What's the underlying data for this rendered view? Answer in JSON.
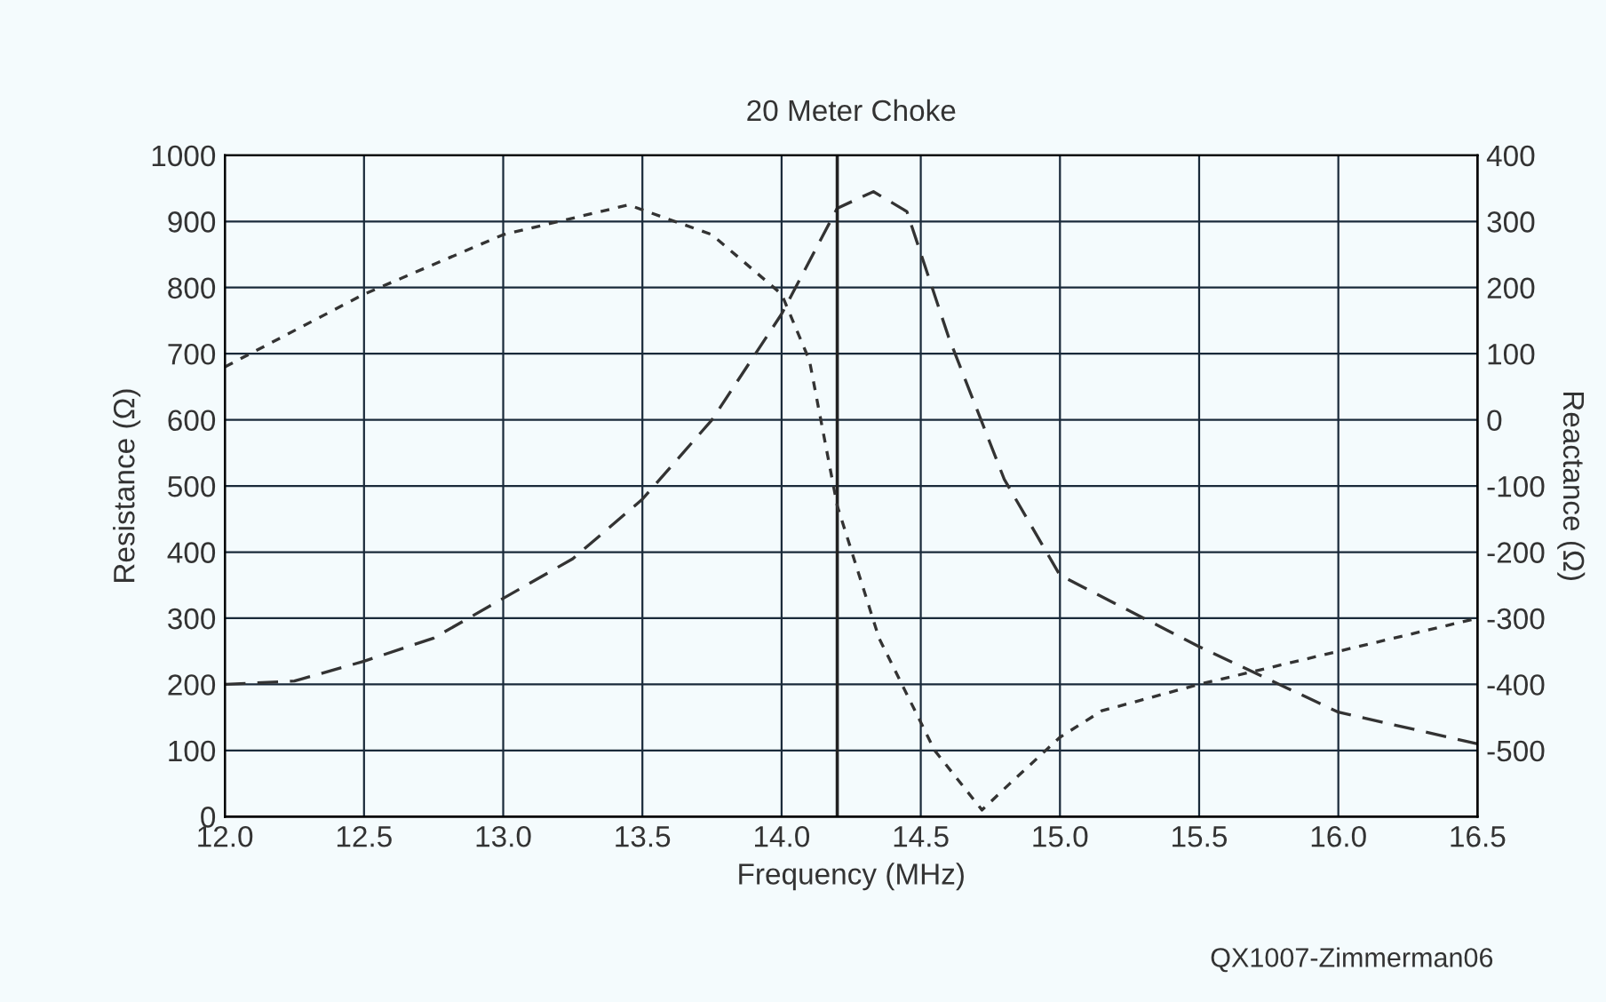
{
  "chart_data": {
    "type": "line",
    "title": "20 Meter Choke",
    "xlabel": "Frequency (MHz)",
    "ylabel": "Resistance (Ω)",
    "y2label": "Reactance (Ω)",
    "xlim": [
      12.0,
      16.5
    ],
    "xticks": [
      {
        "value": 12.0,
        "label": "12.0"
      },
      {
        "value": 12.5,
        "label": "12.5"
      },
      {
        "value": 13.0,
        "label": "13.0"
      },
      {
        "value": 13.5,
        "label": "13.5"
      },
      {
        "value": 14.0,
        "label": "14.0"
      },
      {
        "value": 14.5,
        "label": "14.5"
      },
      {
        "value": 15.0,
        "label": "15.0"
      },
      {
        "value": 15.5,
        "label": "15.5"
      },
      {
        "value": 16.0,
        "label": "16.0"
      },
      {
        "value": 16.5,
        "label": "16.5"
      }
    ],
    "ylim": [
      0,
      1000
    ],
    "yticks": [
      0,
      100,
      200,
      300,
      400,
      500,
      600,
      700,
      800,
      900,
      1000
    ],
    "y2lim": [
      -600,
      400
    ],
    "y2ticks": [
      -500,
      -400,
      -300,
      -200,
      -100,
      0,
      100,
      200,
      300,
      400
    ],
    "grid": true,
    "legend": false,
    "marker": "none",
    "series": [
      {
        "color": "#333333",
        "line_style": "dashed",
        "x": [
          12.0,
          12.25,
          12.5,
          12.75,
          13.0,
          13.25,
          13.5,
          13.75,
          14.0,
          14.2,
          14.33,
          14.45,
          14.6,
          14.8,
          15.0,
          15.5,
          16.0,
          16.5
        ],
        "values": [
          200,
          205,
          235,
          270,
          330,
          390,
          480,
          600,
          760,
          920,
          945,
          915,
          725,
          510,
          365,
          257,
          158,
          110
        ]
      },
      {
        "axis": "y2",
        "color": "#333333",
        "line_style": "dotted",
        "x": [
          12.0,
          12.5,
          13.0,
          13.45,
          13.75,
          14.0,
          14.1,
          14.2,
          14.35,
          14.55,
          14.72,
          14.82,
          15.0,
          15.15,
          15.5,
          16.0,
          16.5
        ],
        "values": [
          80,
          190,
          280,
          325,
          280,
          190,
          90,
          -130,
          -330,
          -500,
          -590,
          -550,
          -480,
          -440,
          -400,
          -350,
          -300
        ]
      }
    ],
    "ref_lines": [
      {
        "axis": "x",
        "value": 14.2,
        "color": "#222222"
      }
    ],
    "annotations": [
      "QX1007-Zimmerman06"
    ]
  }
}
